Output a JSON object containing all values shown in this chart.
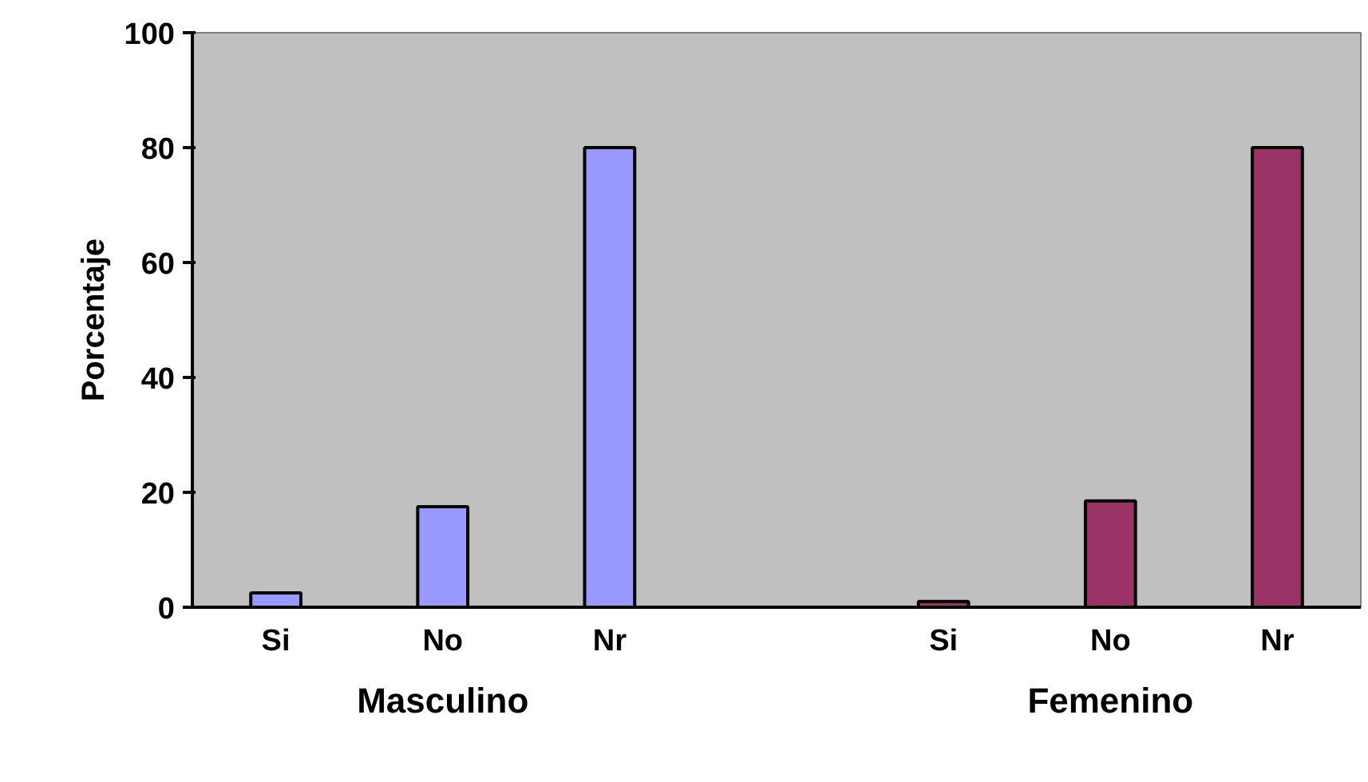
{
  "chart_data": {
    "type": "bar",
    "ylabel": "Porcentaje",
    "categories": [
      "Si",
      "No",
      "Nr",
      null,
      "Si",
      "No",
      "Nr"
    ],
    "series": [
      {
        "color": "#9999ff",
        "values": [
          2.5,
          17.5,
          80,
          null,
          null,
          null,
          null
        ]
      },
      {
        "color": "#993366",
        "values": [
          null,
          null,
          null,
          null,
          1,
          18.5,
          80
        ]
      }
    ],
    "annotations": [
      "Masculino",
      "Femenino"
    ],
    "ylim": [
      0,
      100
    ],
    "yticks": [
      0,
      20,
      40,
      60,
      80,
      100
    ],
    "grid": false
  }
}
